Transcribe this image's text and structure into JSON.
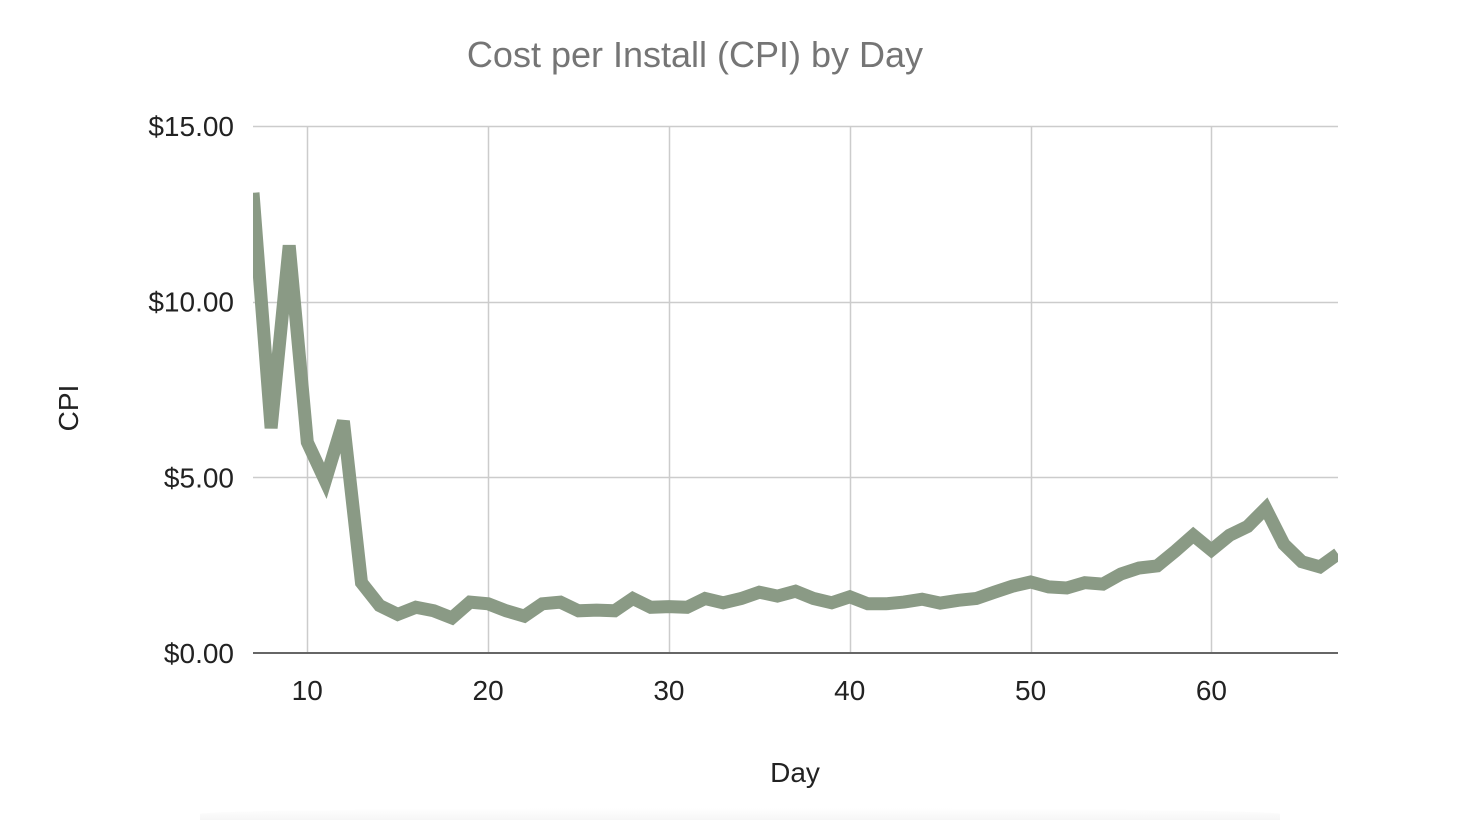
{
  "chart_data": {
    "type": "line",
    "title": "Cost per Install (CPI) by Day",
    "xlabel": "Day",
    "ylabel": "CPI",
    "xlim": [
      7,
      67
    ],
    "ylim": [
      0,
      15
    ],
    "x_ticks": [
      10,
      20,
      30,
      40,
      50,
      60
    ],
    "y_ticks": [
      {
        "value": 0,
        "label": "$0.00"
      },
      {
        "value": 5,
        "label": "$5.00"
      },
      {
        "value": 10,
        "label": "$10.00"
      },
      {
        "value": 15,
        "label": "$15.00"
      }
    ],
    "grid": true,
    "legend": "none",
    "series": [
      {
        "name": "CPI",
        "color": "#8a9a85",
        "x": [
          7,
          8,
          9,
          10,
          11,
          12,
          13,
          14,
          15,
          16,
          17,
          18,
          19,
          20,
          21,
          22,
          23,
          24,
          25,
          26,
          27,
          28,
          29,
          30,
          31,
          32,
          33,
          34,
          35,
          36,
          37,
          38,
          39,
          40,
          41,
          42,
          43,
          44,
          45,
          46,
          47,
          48,
          49,
          50,
          51,
          52,
          53,
          54,
          55,
          56,
          57,
          58,
          59,
          60,
          61,
          62,
          63,
          64,
          65,
          66,
          67
        ],
        "values": [
          13.1,
          6.4,
          11.6,
          6.0,
          4.9,
          6.6,
          2.0,
          1.35,
          1.1,
          1.3,
          1.2,
          1.0,
          1.45,
          1.4,
          1.2,
          1.05,
          1.4,
          1.45,
          1.2,
          1.22,
          1.2,
          1.55,
          1.3,
          1.32,
          1.3,
          1.55,
          1.43,
          1.55,
          1.73,
          1.62,
          1.76,
          1.55,
          1.43,
          1.6,
          1.4,
          1.4,
          1.45,
          1.53,
          1.42,
          1.5,
          1.55,
          1.73,
          1.9,
          2.02,
          1.88,
          1.85,
          2.0,
          1.96,
          2.25,
          2.42,
          2.48,
          2.9,
          3.35,
          2.93,
          3.35,
          3.6,
          4.12,
          3.1,
          2.6,
          2.45,
          2.82
        ]
      }
    ]
  },
  "colors": {
    "title": "#757575",
    "gridline": "#cccccc",
    "axis": "#666666",
    "tick_label": "#222222",
    "series": "#8a9a85"
  }
}
